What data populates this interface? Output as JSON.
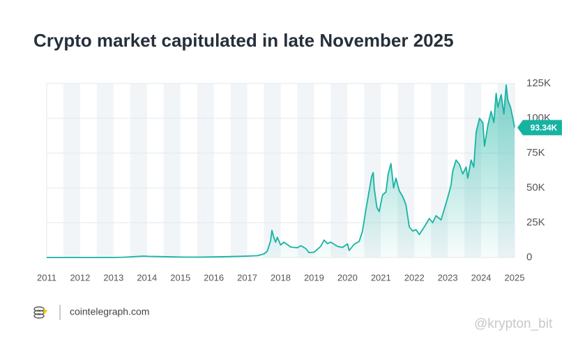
{
  "chart_data": {
    "type": "area",
    "title": "Crypto market capitulated in late November 2025",
    "color": "#16b3a2",
    "x": [
      2011.0,
      2011.5,
      2012.0,
      2012.5,
      2013.0,
      2013.3,
      2013.9,
      2014.05,
      2014.5,
      2015.0,
      2015.5,
      2016.0,
      2016.5,
      2017.0,
      2017.3,
      2017.5,
      2017.6,
      2017.7,
      2017.74,
      2017.8,
      2017.85,
      2017.9,
      2018.0,
      2018.1,
      2018.3,
      2018.5,
      2018.6,
      2018.75,
      2018.85,
      2019.0,
      2019.2,
      2019.3,
      2019.4,
      2019.5,
      2019.7,
      2019.85,
      2020.0,
      2020.05,
      2020.2,
      2020.35,
      2020.45,
      2020.55,
      2020.65,
      2020.72,
      2020.77,
      2020.8,
      2020.88,
      2020.95,
      2021.05,
      2021.15,
      2021.22,
      2021.3,
      2021.38,
      2021.45,
      2021.55,
      2021.65,
      2021.75,
      2021.85,
      2021.95,
      2022.05,
      2022.15,
      2022.3,
      2022.45,
      2022.55,
      2022.65,
      2022.8,
      2022.9,
      2023.0,
      2023.1,
      2023.15,
      2023.25,
      2023.35,
      2023.45,
      2023.55,
      2023.6,
      2023.7,
      2023.78,
      2023.85,
      2023.95,
      2024.05,
      2024.1,
      2024.2,
      2024.3,
      2024.38,
      2024.45,
      2024.5,
      2024.6,
      2024.68,
      2024.75,
      2024.8,
      2024.88,
      2024.95,
      2025.0
    ],
    "values": [
      1,
      15,
      6,
      8,
      13,
      200,
      1000,
      800,
      600,
      300,
      250,
      400,
      650,
      1000,
      1300,
      2500,
      4500,
      12000,
      19500,
      14000,
      11000,
      14500,
      9000,
      11000,
      7500,
      7000,
      8500,
      6500,
      3500,
      3800,
      8000,
      12500,
      10000,
      11000,
      8000,
      7200,
      9800,
      5000,
      9500,
      11500,
      19000,
      34000,
      48000,
      58000,
      61000,
      50000,
      36000,
      33000,
      45000,
      47000,
      60000,
      67500,
      50000,
      57000,
      48000,
      44000,
      38000,
      22000,
      19000,
      20000,
      16500,
      22000,
      28000,
      25000,
      30000,
      27000,
      35000,
      43000,
      52000,
      62000,
      70000,
      67000,
      60000,
      65000,
      57000,
      70000,
      65000,
      90000,
      100000,
      97000,
      80000,
      95000,
      105000,
      97000,
      118000,
      108000,
      117000,
      103000,
      124000,
      113000,
      108000,
      100000,
      93340
    ],
    "last_label": "93.34K",
    "xlim": [
      2011,
      2025
    ],
    "xticks": [
      2011,
      2012,
      2013,
      2014,
      2015,
      2016,
      2017,
      2018,
      2019,
      2020,
      2021,
      2022,
      2023,
      2024,
      2025
    ],
    "ylim": [
      0,
      125000
    ],
    "yticks": [
      {
        "value": 0,
        "label": "0"
      },
      {
        "value": 25000,
        "label": "25K"
      },
      {
        "value": 50000,
        "label": "50K"
      },
      {
        "value": 75000,
        "label": "75K"
      },
      {
        "value": 100000,
        "label": "100K"
      },
      {
        "value": 125000,
        "label": "125K"
      }
    ],
    "grid": true
  },
  "footer": {
    "source": "cointelegraph.com",
    "watermark": "@krypton_bit"
  }
}
